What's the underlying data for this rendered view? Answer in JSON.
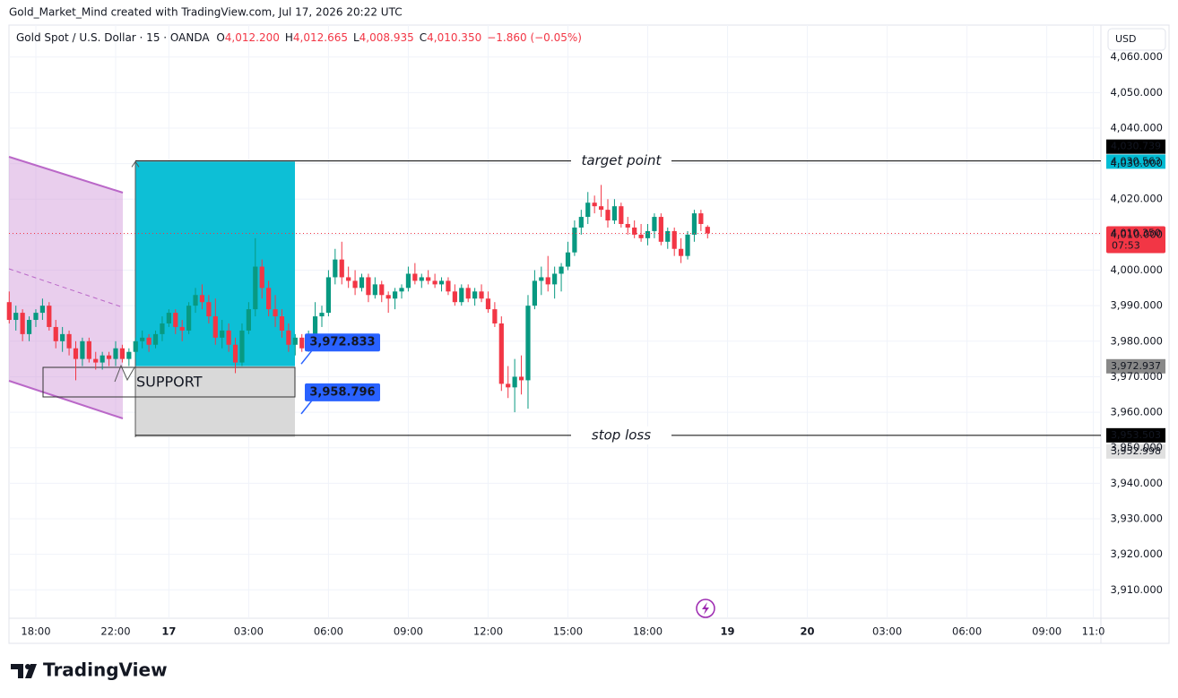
{
  "header": "Gold_Market_Mind created with TradingView.com, Jul 17, 2026 20:22 UTC",
  "branding": "TradingView",
  "chart_data": {
    "type": "candlestick",
    "title": "Gold Spot / U.S. Dollar · 15 · OANDA",
    "legend_fields": [
      {
        "key": "O",
        "value": "4,012.200"
      },
      {
        "key": "H",
        "value": "4,012.665"
      },
      {
        "key": "L",
        "value": "4,008.935"
      },
      {
        "key": "C",
        "value": "4,010.350"
      }
    ],
    "change": "−1.860 (−0.05%)",
    "currency": "USD",
    "up_color": "#089981",
    "down_color": "#f23645",
    "grid": true,
    "xlim": [
      0,
      164
    ],
    "ylim": [
      3902,
      4069
    ],
    "yticks": [
      {
        "value": 4060,
        "label": "4,060.000"
      },
      {
        "value": 4050,
        "label": "4,050.000"
      },
      {
        "value": 4040,
        "label": "4,040.000"
      },
      {
        "value": 4030,
        "label": "4,030.000"
      },
      {
        "value": 4020,
        "label": "4,020.000"
      },
      {
        "value": 4010,
        "label": "4,010.000"
      },
      {
        "value": 4000,
        "label": "4,000.000"
      },
      {
        "value": 3990,
        "label": "3,990.000"
      },
      {
        "value": 3980,
        "label": "3,980.000"
      },
      {
        "value": 3970,
        "label": "3,970.000"
      },
      {
        "value": 3960,
        "label": "3,960.000"
      },
      {
        "value": 3950,
        "label": "3,950.000"
      },
      {
        "value": 3940,
        "label": "3,940.000"
      },
      {
        "value": 3930,
        "label": "3,930.000"
      },
      {
        "value": 3920,
        "label": "3,920.000"
      },
      {
        "value": 3910,
        "label": "3,910.000"
      }
    ],
    "xticks": [
      {
        "value": 4,
        "label": "18:00"
      },
      {
        "value": 16,
        "label": "22:00"
      },
      {
        "value": 24,
        "label": "17"
      },
      {
        "value": 36,
        "label": "03:00"
      },
      {
        "value": 48,
        "label": "06:00"
      },
      {
        "value": 60,
        "label": "09:00"
      },
      {
        "value": 72,
        "label": "12:00"
      },
      {
        "value": 84,
        "label": "15:00"
      },
      {
        "value": 96,
        "label": "18:00"
      },
      {
        "value": 108,
        "label": "19"
      },
      {
        "value": 120,
        "label": "20"
      },
      {
        "value": 132,
        "label": "03:00"
      },
      {
        "value": 144,
        "label": "06:00"
      },
      {
        "value": 156,
        "label": "09:00"
      },
      {
        "value": 163,
        "label": "11:0"
      }
    ],
    "candles": [
      [
        3991,
        3994,
        3985,
        3986
      ],
      [
        3986,
        3990,
        3983,
        3988
      ],
      [
        3988,
        3989,
        3980,
        3982
      ],
      [
        3982,
        3987,
        3980,
        3986
      ],
      [
        3986,
        3989,
        3984,
        3988
      ],
      [
        3988,
        3992,
        3986,
        3990
      ],
      [
        3990,
        3991,
        3983,
        3984
      ],
      [
        3984,
        3986,
        3978,
        3980
      ],
      [
        3980,
        3984,
        3977,
        3982
      ],
      [
        3982,
        3983,
        3976,
        3978
      ],
      [
        3978,
        3980,
        3969,
        3975
      ],
      [
        3975,
        3981,
        3973,
        3980
      ],
      [
        3980,
        3981,
        3974,
        3975
      ],
      [
        3975,
        3977,
        3972,
        3974
      ],
      [
        3974,
        3977,
        3972,
        3976
      ],
      [
        3976,
        3977,
        3973,
        3975
      ],
      [
        3975,
        3980,
        3973,
        3978
      ],
      [
        3978,
        3979,
        3974,
        3975
      ],
      [
        3975,
        3978,
        3973,
        3977
      ],
      [
        3977,
        3981,
        3975,
        3980
      ],
      [
        3980,
        3983,
        3978,
        3981
      ],
      [
        3981,
        3982,
        3977,
        3979
      ],
      [
        3979,
        3983,
        3978,
        3982
      ],
      [
        3982,
        3987,
        3980,
        3985
      ],
      [
        3985,
        3989,
        3984,
        3988
      ],
      [
        3988,
        3989,
        3982,
        3984
      ],
      [
        3984,
        3986,
        3980,
        3983
      ],
      [
        3983,
        3991,
        3982,
        3990
      ],
      [
        3990,
        3995,
        3988,
        3993
      ],
      [
        3993,
        3996,
        3989,
        3991
      ],
      [
        3991,
        3993,
        3985,
        3987
      ],
      [
        3987,
        3992,
        3979,
        3981
      ],
      [
        3981,
        3986,
        3978,
        3983
      ],
      [
        3983,
        3985,
        3977,
        3979
      ],
      [
        3979,
        3981,
        3971,
        3974
      ],
      [
        3974,
        3985,
        3973,
        3983
      ],
      [
        3983,
        3991,
        3982,
        3989
      ],
      [
        3989,
        4009,
        3987,
        4001
      ],
      [
        4001,
        4003,
        3992,
        3995
      ],
      [
        3995,
        3997,
        3987,
        3989
      ],
      [
        3989,
        3993,
        3984,
        3987
      ],
      [
        3987,
        3989,
        3981,
        3983
      ],
      [
        3983,
        3985,
        3977,
        3979
      ],
      [
        3979,
        3982,
        3976,
        3981
      ],
      [
        3981,
        3982,
        3977,
        3978
      ],
      [
        3978,
        3983,
        3977,
        3982
      ],
      [
        3982,
        3991,
        3981,
        3987
      ],
      [
        3987,
        3990,
        3984,
        3988
      ],
      [
        3988,
        4000,
        3987,
        3998
      ],
      [
        3998,
        4006,
        3996,
        4003
      ],
      [
        4003,
        4008,
        3996,
        3998
      ],
      [
        3998,
        4001,
        3995,
        3997
      ],
      [
        3997,
        4000,
        3993,
        3995
      ],
      [
        3995,
        3999,
        3994,
        3998
      ],
      [
        3998,
        3999,
        3991,
        3993
      ],
      [
        3993,
        3998,
        3992,
        3996
      ],
      [
        3996,
        3997,
        3991,
        3993
      ],
      [
        3993,
        3994,
        3988,
        3992
      ],
      [
        3992,
        3995,
        3989,
        3994
      ],
      [
        3994,
        3996,
        3992,
        3995
      ],
      [
        3995,
        4001,
        3994,
        3999
      ],
      [
        3999,
        4002,
        3996,
        3997
      ],
      [
        3997,
        3999,
        3995,
        3998
      ],
      [
        3998,
        4000,
        3996,
        3997
      ],
      [
        3997,
        3999,
        3995,
        3996
      ],
      [
        3996,
        3998,
        3994,
        3997
      ],
      [
        3997,
        3998,
        3993,
        3994
      ],
      [
        3994,
        3996,
        3990,
        3991
      ],
      [
        3991,
        3996,
        3990,
        3995
      ],
      [
        3995,
        3996,
        3991,
        3992
      ],
      [
        3992,
        3995,
        3990,
        3994
      ],
      [
        3994,
        3996,
        3991,
        3992
      ],
      [
        3992,
        3994,
        3988,
        3989
      ],
      [
        3989,
        3991,
        3984,
        3985
      ],
      [
        3985,
        3987,
        3966,
        3968
      ],
      [
        3968,
        3973,
        3964,
        3967
      ],
      [
        3967,
        3975,
        3960,
        3970
      ],
      [
        3970,
        3976,
        3965,
        3969
      ],
      [
        3969,
        3993,
        3961,
        3990
      ],
      [
        3990,
        4000,
        3989,
        3997
      ],
      [
        3997,
        4001,
        3993,
        3998
      ],
      [
        3998,
        4004,
        3994,
        3996
      ],
      [
        3996,
        4001,
        3992,
        3999
      ],
      [
        3999,
        4002,
        3994,
        4001
      ],
      [
        4001,
        4008,
        4000,
        4005
      ],
      [
        4005,
        4014,
        4004,
        4012
      ],
      [
        4012,
        4017,
        4010,
        4015
      ],
      [
        4015,
        4022,
        4013,
        4019
      ],
      [
        4019,
        4021,
        4016,
        4018
      ],
      [
        4018,
        4024,
        4015,
        4017
      ],
      [
        4017,
        4020,
        4012,
        4014
      ],
      [
        4014,
        4020,
        4013,
        4018
      ],
      [
        4018,
        4019,
        4012,
        4013
      ],
      [
        4013,
        4015,
        4010,
        4012
      ],
      [
        4012,
        4014,
        4009,
        4010
      ],
      [
        4010,
        4013,
        4008,
        4009
      ],
      [
        4009,
        4013,
        4007,
        4011
      ],
      [
        4011,
        4016,
        4009,
        4015
      ],
      [
        4015,
        4016,
        4007,
        4008
      ],
      [
        4008,
        4012,
        4006,
        4011
      ],
      [
        4011,
        4012,
        4004,
        4006
      ],
      [
        4006,
        4009,
        4002,
        4004
      ],
      [
        4004,
        4011,
        4003,
        4010
      ],
      [
        4010,
        4017,
        4008,
        4016
      ],
      [
        4016,
        4017,
        4011,
        4013
      ],
      [
        4012.2,
        4012.665,
        4008.935,
        4010.35
      ]
    ],
    "horizontal_lines": [
      {
        "name": "target point",
        "value": 4030.739,
        "label": "4,030.739"
      },
      {
        "name": "stop loss",
        "value": 3953.503,
        "label": "3,953.503"
      }
    ],
    "position": {
      "target": {
        "value": 4030.563,
        "label": "4,030.563"
      },
      "entry": {
        "value": 3972.937,
        "label": "3,972.937"
      },
      "stop": {
        "value": 3952.998,
        "label": "3,952.998"
      }
    },
    "callouts": [
      {
        "value": 3972.833,
        "label": "3,972.833"
      },
      {
        "value": 3958.796,
        "label": "3,958.796"
      }
    ],
    "support_label": "SUPPORT",
    "last_price": {
      "value": 4010.35,
      "label": "4,010.350",
      "countdown": "07:53"
    }
  }
}
